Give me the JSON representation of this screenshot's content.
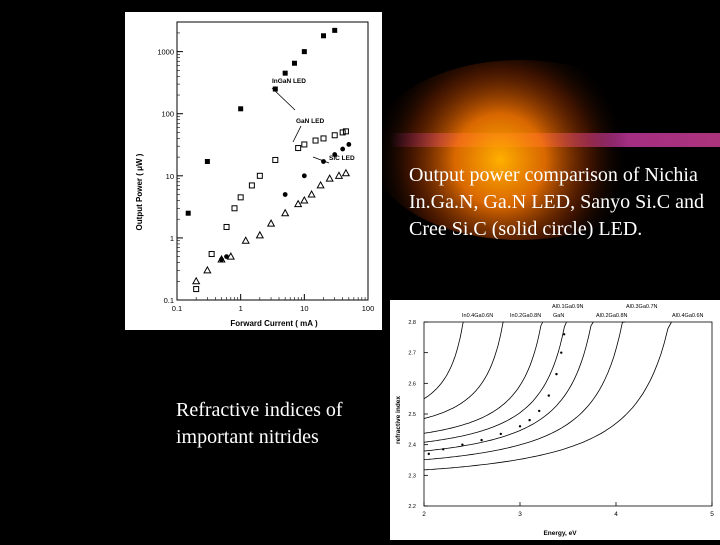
{
  "caption_output": "Output power comparison of Nichia In.Ga.N, Ga.N LED, Sanyo Si.C and Cree Si.C (solid circle) LED.",
  "caption_refractive": "Refractive indices of important nitrides",
  "colors": {
    "background": "#000000",
    "glow_orange": "#ff8a00",
    "glow_purple": "#a0249e"
  },
  "chart_data": [
    {
      "type": "scatter",
      "scale": "log-log",
      "xlabel": "Forward Current ( mA )",
      "ylabel": "Output Power ( μW )",
      "xlim": [
        0.1,
        100
      ],
      "ylim": [
        0.1,
        3000
      ],
      "x_ticks": [
        "0.1",
        "1",
        "10",
        "100"
      ],
      "y_ticks": [
        "0.1",
        "1",
        "10",
        "100",
        "1000"
      ],
      "series": [
        {
          "name": "InGaN LED",
          "marker": "square-filled",
          "points": [
            [
              0.15,
              2.5
            ],
            [
              0.3,
              17
            ],
            [
              1,
              120
            ],
            [
              3.5,
              250
            ],
            [
              5,
              450
            ],
            [
              7,
              650
            ],
            [
              10,
              1000
            ],
            [
              20,
              1800
            ],
            [
              30,
              2200
            ]
          ]
        },
        {
          "name": "GaN LED",
          "marker": "square-open",
          "points": [
            [
              0.2,
              0.15
            ],
            [
              0.35,
              0.55
            ],
            [
              0.6,
              1.5
            ],
            [
              0.8,
              3
            ],
            [
              1,
              4.5
            ],
            [
              1.5,
              7
            ],
            [
              2,
              10
            ],
            [
              3.5,
              18
            ],
            [
              8,
              28
            ],
            [
              10,
              32
            ],
            [
              15,
              37
            ],
            [
              20,
              40
            ],
            [
              30,
              45
            ],
            [
              40,
              50
            ],
            [
              45,
              52
            ]
          ]
        },
        {
          "name": "SiC LED",
          "marker": "triangle-open",
          "points": [
            [
              0.2,
              0.2
            ],
            [
              0.3,
              0.3
            ],
            [
              0.5,
              0.45
            ],
            [
              0.7,
              0.5
            ],
            [
              1.2,
              0.9
            ],
            [
              2,
              1.1
            ],
            [
              3,
              1.7
            ],
            [
              5,
              2.5
            ],
            [
              8,
              3.5
            ],
            [
              10,
              4
            ],
            [
              13,
              5
            ],
            [
              18,
              7
            ],
            [
              25,
              9
            ],
            [
              35,
              10
            ],
            [
              45,
              11
            ]
          ]
        },
        {
          "name": "",
          "marker": "circle-filled",
          "points": [
            [
              0.5,
              0.45
            ],
            [
              0.6,
              0.5
            ],
            [
              5,
              5
            ],
            [
              10,
              10
            ],
            [
              20,
              17
            ],
            [
              30,
              22
            ],
            [
              40,
              27
            ],
            [
              50,
              32
            ]
          ]
        }
      ],
      "annotations": [
        "InGaN LED",
        "GaN LED",
        "SiC LED"
      ]
    },
    {
      "type": "line",
      "xlabel": "Energy, eV",
      "ylabel": "refractive index",
      "xlim": [
        2,
        5
      ],
      "ylim": [
        2.2,
        2.8
      ],
      "x_ticks": [
        "2",
        "3",
        "4",
        "5"
      ],
      "y_ticks": [
        "2.2",
        "2.3",
        "2.4",
        "2.5",
        "2.6",
        "2.7",
        "2.8"
      ],
      "curve_labels": [
        "In0.4Ga0.6N",
        "In0.2Ga0.8N",
        "GaN",
        "Al0.1Ga0.9N",
        "Al0.2Ga0.8N",
        "Al0.3Ga0.7N",
        "Al0.4Ga0.6N"
      ],
      "curves": [
        {
          "eg": 2.6,
          "n0": 2.47,
          "a": 0.055
        },
        {
          "eg": 3.05,
          "n0": 2.44,
          "a": 0.06
        },
        {
          "eg": 3.48,
          "n0": 2.405,
          "a": 0.065
        },
        {
          "eg": 3.75,
          "n0": 2.38,
          "a": 0.07
        },
        {
          "eg": 4.05,
          "n0": 2.355,
          "a": 0.075
        },
        {
          "eg": 4.4,
          "n0": 2.33,
          "a": 0.08
        },
        {
          "eg": 4.95,
          "n0": 2.3,
          "a": 0.09
        }
      ],
      "measured_points": [
        [
          2.05,
          2.37
        ],
        [
          2.2,
          2.385
        ],
        [
          2.4,
          2.4
        ],
        [
          2.6,
          2.415
        ],
        [
          2.8,
          2.435
        ],
        [
          3.0,
          2.46
        ],
        [
          3.1,
          2.48
        ],
        [
          3.2,
          2.51
        ],
        [
          3.3,
          2.56
        ],
        [
          3.38,
          2.63
        ],
        [
          3.43,
          2.7
        ],
        [
          3.46,
          2.76
        ]
      ]
    }
  ]
}
